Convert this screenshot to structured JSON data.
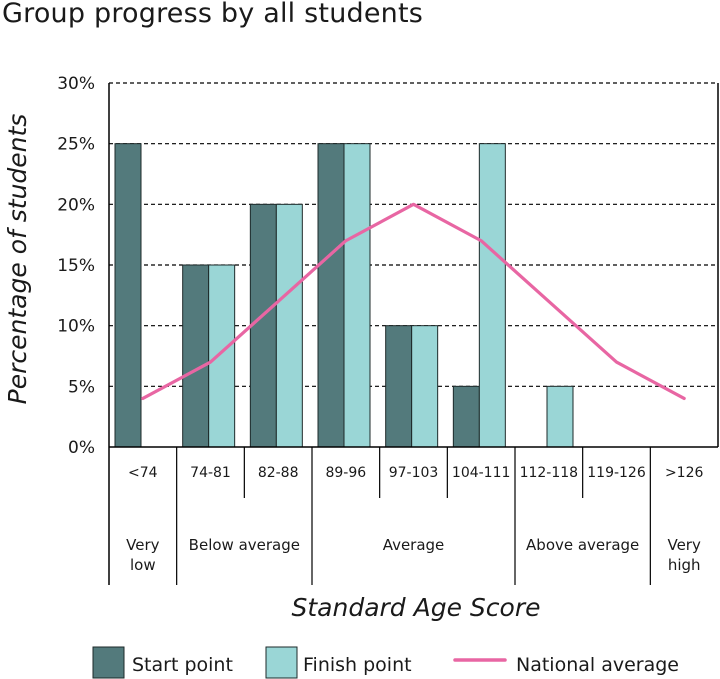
{
  "chart_data": {
    "type": "bar",
    "title": "Group progress by all students",
    "xlabel": "Standard Age Score",
    "ylabel": "Percentage of students",
    "ylim": [
      0,
      30
    ],
    "yticks": [
      0,
      5,
      10,
      15,
      20,
      25,
      30
    ],
    "ytick_labels": [
      "0%",
      "5%",
      "10%",
      "15%",
      "20%",
      "25%",
      "30%"
    ],
    "grid": "horizontal dashed",
    "categories": [
      "<74",
      "74-81",
      "82-88",
      "89-96",
      "97-103",
      "104-111",
      "112-118",
      "119-126",
      ">126"
    ],
    "series": [
      {
        "name": "Start point",
        "kind": "bar",
        "color": "#537a7c",
        "values": [
          25,
          15,
          20,
          25,
          10,
          5,
          0,
          0,
          0
        ]
      },
      {
        "name": "Finish point",
        "kind": "bar",
        "color": "#9ad6d6",
        "values": [
          0,
          15,
          20,
          25,
          10,
          25,
          5,
          0,
          0
        ]
      },
      {
        "name": "National average",
        "kind": "line",
        "color": "#e866a3",
        "values": [
          4,
          7,
          12,
          17,
          20,
          17,
          12,
          7,
          4
        ]
      }
    ],
    "groups": [
      {
        "label": "Very low",
        "lines": [
          "Very",
          "low"
        ],
        "start": 0,
        "end": 0
      },
      {
        "label": "Below average",
        "lines": [
          "Below average"
        ],
        "start": 1,
        "end": 2
      },
      {
        "label": "Average",
        "lines": [
          "Average"
        ],
        "start": 3,
        "end": 5
      },
      {
        "label": "Above average",
        "lines": [
          "Above average"
        ],
        "start": 6,
        "end": 7
      },
      {
        "label": "Very high",
        "lines": [
          "Very",
          "high"
        ],
        "start": 8,
        "end": 8
      }
    ],
    "legend": {
      "position": "bottom",
      "items": [
        "Start point",
        "Finish point",
        "National average"
      ]
    }
  }
}
